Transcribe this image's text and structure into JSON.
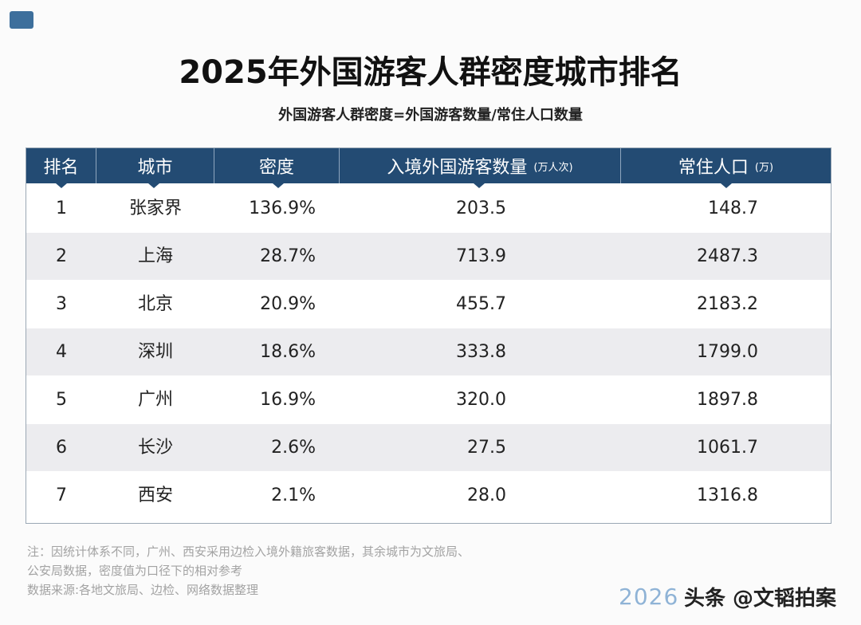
{
  "title": "2025年外国游客人群密度城市排名",
  "subtitle": "外国游客人群密度=外国游客数量/常住人口数量",
  "table": {
    "header": [
      {
        "text": "排名"
      },
      {
        "text": "城市"
      },
      {
        "text": "密度"
      },
      {
        "text": "入境外国游客数量",
        "unit": "(万人次)"
      },
      {
        "text": "常住人口",
        "unit": "(万)"
      }
    ],
    "rows": [
      [
        "1",
        "张家界",
        "136.9%",
        "203.5",
        "148.7"
      ],
      [
        "2",
        "上海",
        "28.7%",
        "713.9",
        "2487.3"
      ],
      [
        "3",
        "北京",
        "20.9%",
        "455.7",
        "2183.2"
      ],
      [
        "4",
        "深圳",
        "18.6%",
        "333.8",
        "1799.0"
      ],
      [
        "5",
        "广州",
        "16.9%",
        "320.0",
        "1897.8"
      ],
      [
        "6",
        "长沙",
        "2.6%",
        "27.5",
        "1061.7"
      ],
      [
        "7",
        "西安",
        "2.1%",
        "28.0",
        "1316.8"
      ]
    ]
  },
  "notes": [
    "注：因统计体系不同，广州、西安采用边检入境外籍旅客数据，其余城市为文旅局、",
    "公安局数据，密度值为口径下的相对参考",
    "数据来源:各地文旅局、边检、网络数据整理"
  ],
  "watermark": {
    "year": "2026",
    "source": "头条 @文韬拍案"
  }
}
